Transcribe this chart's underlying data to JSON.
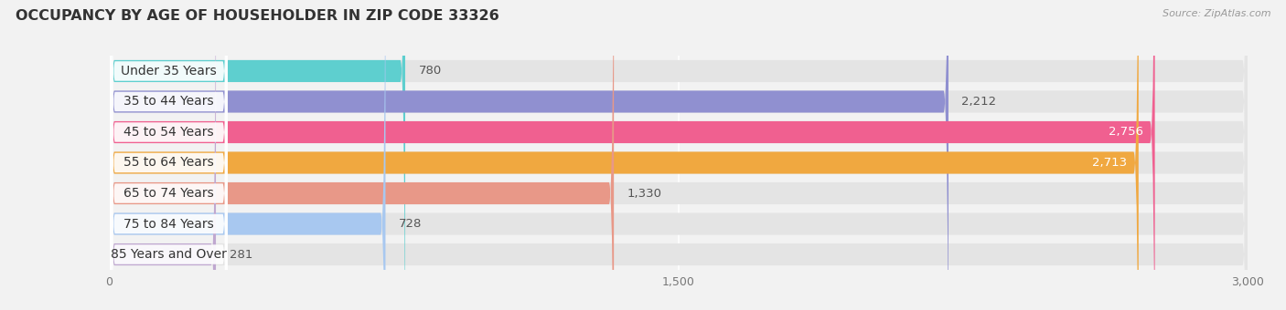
{
  "title": "OCCUPANCY BY AGE OF HOUSEHOLDER IN ZIP CODE 33326",
  "source": "Source: ZipAtlas.com",
  "categories": [
    "Under 35 Years",
    "35 to 44 Years",
    "45 to 54 Years",
    "55 to 64 Years",
    "65 to 74 Years",
    "75 to 84 Years",
    "85 Years and Over"
  ],
  "values": [
    780,
    2212,
    2756,
    2713,
    1330,
    728,
    281
  ],
  "bar_colors": [
    "#5ecfcf",
    "#9090d0",
    "#f06090",
    "#f0a840",
    "#e89888",
    "#a8c8f0",
    "#c0a8d0"
  ],
  "xlim": [
    0,
    3000
  ],
  "xticks": [
    0,
    1500,
    3000
  ],
  "xtick_labels": [
    "0",
    "1,500",
    "3,000"
  ],
  "bar_height": 0.72,
  "background_color": "#f2f2f2",
  "bar_bg_color": "#e4e4e4",
  "title_fontsize": 11.5,
  "label_fontsize": 10,
  "value_fontsize": 9.5,
  "value_threshold": 2400
}
